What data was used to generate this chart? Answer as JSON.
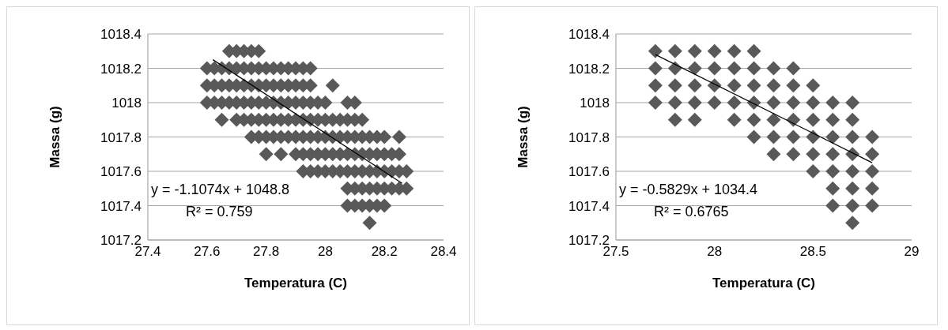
{
  "chart_data": [
    {
      "type": "scatter",
      "xlabel": "Temperatura (C)",
      "ylabel": "Massa (g)",
      "xlim": [
        27.4,
        28.4
      ],
      "xticks": [
        27.4,
        27.6,
        27.8,
        28,
        28.2,
        28.4
      ],
      "ylim": [
        1017.2,
        1018.4
      ],
      "yticks": [
        1017.2,
        1017.4,
        1017.6,
        1017.8,
        1018,
        1018.2,
        1018.4
      ],
      "grid": "y",
      "legend": false,
      "marker": "diamond",
      "annotations": [
        "y = -1.1074x + 1048.8",
        "R² = 0.759"
      ],
      "series": [
        {
          "color": "#595959",
          "x": [
            27.675,
            27.7,
            27.725,
            27.75,
            27.775,
            27.6,
            27.625,
            27.65,
            27.675,
            27.7,
            27.725,
            27.75,
            27.775,
            27.8,
            27.825,
            27.85,
            27.875,
            27.9,
            27.925,
            27.95,
            27.6,
            27.625,
            27.65,
            27.675,
            27.7,
            27.725,
            27.75,
            27.775,
            27.8,
            27.825,
            27.85,
            27.875,
            27.9,
            27.925,
            27.95,
            28.025,
            27.6,
            27.625,
            27.65,
            27.675,
            27.7,
            27.725,
            27.75,
            27.775,
            27.8,
            27.825,
            27.85,
            27.875,
            27.9,
            27.925,
            27.95,
            27.975,
            28,
            28.075,
            28.1,
            27.65,
            27.7,
            27.725,
            27.75,
            27.775,
            27.8,
            27.825,
            27.85,
            27.875,
            27.9,
            27.925,
            27.95,
            27.975,
            28,
            28.025,
            28.05,
            28.075,
            28.1,
            28.125,
            27.75,
            27.775,
            27.8,
            27.825,
            27.85,
            27.875,
            27.9,
            27.925,
            27.95,
            27.975,
            28,
            28.025,
            28.05,
            28.075,
            28.1,
            28.125,
            28.15,
            28.175,
            28.2,
            28.25,
            27.8,
            27.85,
            27.9,
            27.925,
            27.95,
            27.975,
            28,
            28.025,
            28.05,
            28.075,
            28.1,
            28.125,
            28.15,
            28.175,
            28.2,
            28.225,
            28.25,
            27.925,
            27.95,
            27.975,
            28,
            28.025,
            28.05,
            28.075,
            28.1,
            28.125,
            28.15,
            28.175,
            28.2,
            28.225,
            28.25,
            28.275,
            28.075,
            28.1,
            28.125,
            28.15,
            28.175,
            28.2,
            28.225,
            28.25,
            28.275,
            28.075,
            28.1,
            28.125,
            28.15,
            28.175,
            28.2,
            28.15
          ],
          "values": [
            1018.3,
            1018.3,
            1018.3,
            1018.3,
            1018.3,
            1018.2,
            1018.2,
            1018.2,
            1018.2,
            1018.2,
            1018.2,
            1018.2,
            1018.2,
            1018.2,
            1018.2,
            1018.2,
            1018.2,
            1018.2,
            1018.2,
            1018.2,
            1018.1,
            1018.1,
            1018.1,
            1018.1,
            1018.1,
            1018.1,
            1018.1,
            1018.1,
            1018.1,
            1018.1,
            1018.1,
            1018.1,
            1018.1,
            1018.1,
            1018.1,
            1018.1,
            1018,
            1018,
            1018,
            1018,
            1018,
            1018,
            1018,
            1018,
            1018,
            1018,
            1018,
            1018,
            1018,
            1018,
            1018,
            1018,
            1018,
            1018,
            1018,
            1017.9,
            1017.9,
            1017.9,
            1017.9,
            1017.9,
            1017.9,
            1017.9,
            1017.9,
            1017.9,
            1017.9,
            1017.9,
            1017.9,
            1017.9,
            1017.9,
            1017.9,
            1017.9,
            1017.9,
            1017.9,
            1017.9,
            1017.8,
            1017.8,
            1017.8,
            1017.8,
            1017.8,
            1017.8,
            1017.8,
            1017.8,
            1017.8,
            1017.8,
            1017.8,
            1017.8,
            1017.8,
            1017.8,
            1017.8,
            1017.8,
            1017.8,
            1017.8,
            1017.8,
            1017.8,
            1017.7,
            1017.7,
            1017.7,
            1017.7,
            1017.7,
            1017.7,
            1017.7,
            1017.7,
            1017.7,
            1017.7,
            1017.7,
            1017.7,
            1017.7,
            1017.7,
            1017.7,
            1017.7,
            1017.7,
            1017.6,
            1017.6,
            1017.6,
            1017.6,
            1017.6,
            1017.6,
            1017.6,
            1017.6,
            1017.6,
            1017.6,
            1017.6,
            1017.6,
            1017.6,
            1017.6,
            1017.6,
            1017.5,
            1017.5,
            1017.5,
            1017.5,
            1017.5,
            1017.5,
            1017.5,
            1017.5,
            1017.5,
            1017.4,
            1017.4,
            1017.4,
            1017.4,
            1017.4,
            1017.4,
            1017.3
          ]
        },
        {
          "type": "line",
          "color": "#000000",
          "marker": "none",
          "x": [
            27.62,
            28.26
          ],
          "values": [
            1018.25,
            1017.53
          ]
        }
      ]
    },
    {
      "type": "scatter",
      "xlabel": "Temperatura (C)",
      "ylabel": "Massa (g)",
      "xlim": [
        27.5,
        29
      ],
      "xticks": [
        27.5,
        28,
        28.5,
        29
      ],
      "ylim": [
        1017.2,
        1018.4
      ],
      "yticks": [
        1017.2,
        1017.4,
        1017.6,
        1017.8,
        1018,
        1018.2,
        1018.4
      ],
      "grid": "y",
      "legend": false,
      "marker": "diamond",
      "annotations": [
        "y = -0.5829x + 1034.4",
        "R² = 0.6765"
      ],
      "series": [
        {
          "color": "#595959",
          "x": [
            27.7,
            27.8,
            27.9,
            28,
            28.1,
            28.2,
            27.7,
            27.8,
            27.9,
            28,
            28.1,
            28.2,
            28.3,
            28.4,
            27.7,
            27.8,
            27.9,
            28,
            28.1,
            28.2,
            28.3,
            28.4,
            28.5,
            27.7,
            27.8,
            27.9,
            28,
            28.1,
            28.2,
            28.3,
            28.4,
            28.5,
            28.6,
            28.7,
            27.8,
            27.9,
            28.1,
            28.2,
            28.3,
            28.4,
            28.5,
            28.6,
            28.7,
            28.2,
            28.3,
            28.4,
            28.5,
            28.6,
            28.7,
            28.8,
            28.3,
            28.4,
            28.5,
            28.6,
            28.7,
            28.8,
            28.5,
            28.6,
            28.7,
            28.8,
            28.6,
            28.7,
            28.8,
            28.6,
            28.7,
            28.8,
            28.7
          ],
          "values": [
            1018.3,
            1018.3,
            1018.3,
            1018.3,
            1018.3,
            1018.3,
            1018.2,
            1018.2,
            1018.2,
            1018.2,
            1018.2,
            1018.2,
            1018.2,
            1018.2,
            1018.1,
            1018.1,
            1018.1,
            1018.1,
            1018.1,
            1018.1,
            1018.1,
            1018.1,
            1018.1,
            1018,
            1018,
            1018,
            1018,
            1018,
            1018,
            1018,
            1018,
            1018,
            1018,
            1018,
            1017.9,
            1017.9,
            1017.9,
            1017.9,
            1017.9,
            1017.9,
            1017.9,
            1017.9,
            1017.9,
            1017.8,
            1017.8,
            1017.8,
            1017.8,
            1017.8,
            1017.8,
            1017.8,
            1017.7,
            1017.7,
            1017.7,
            1017.7,
            1017.7,
            1017.7,
            1017.6,
            1017.6,
            1017.6,
            1017.6,
            1017.5,
            1017.5,
            1017.5,
            1017.4,
            1017.4,
            1017.4,
            1017.3
          ]
        },
        {
          "type": "line",
          "color": "#000000",
          "marker": "none",
          "x": [
            27.7,
            28.8
          ],
          "values": [
            1018.28,
            1017.65
          ]
        }
      ]
    }
  ]
}
